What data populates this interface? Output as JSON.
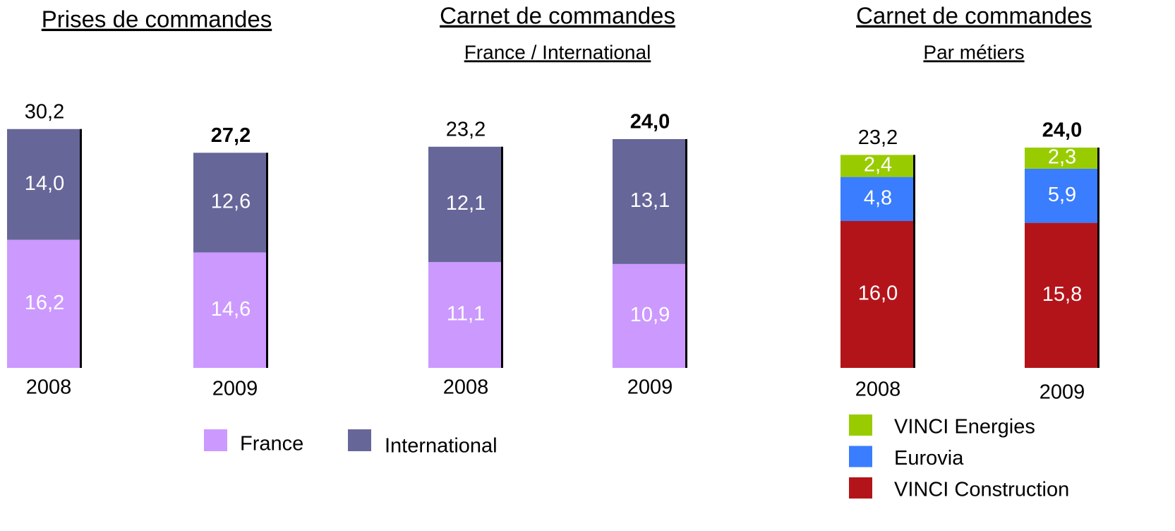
{
  "chart_data": [
    {
      "type": "bar",
      "stacked": true,
      "title": "Prises de commandes",
      "categories": [
        "2008",
        "2009"
      ],
      "series": [
        {
          "name": "France",
          "color": "#cc99ff",
          "values": [
            16.2,
            14.6
          ],
          "value_labels": [
            "16,2",
            "14,6"
          ]
        },
        {
          "name": "International",
          "color": "#666699",
          "values": [
            14.0,
            12.6
          ],
          "value_labels": [
            "14,0",
            "12,6"
          ]
        }
      ],
      "totals": [
        30.2,
        27.2
      ],
      "total_labels": [
        "30,2",
        "27,2"
      ]
    },
    {
      "type": "bar",
      "stacked": true,
      "title": "Carnet de commandes",
      "subtitle": "France / International",
      "categories": [
        "2008",
        "2009"
      ],
      "series": [
        {
          "color": "#cc99ff",
          "values": [
            11.1,
            10.9
          ],
          "value_labels": [
            "11,1",
            "10,9"
          ]
        },
        {
          "color": "#666699",
          "values": [
            12.1,
            13.1
          ],
          "value_labels": [
            "12,1",
            "13,1"
          ]
        }
      ],
      "totals": [
        23.2,
        24.0
      ],
      "total_labels": [
        "23,2",
        "24,0"
      ]
    },
    {
      "type": "bar",
      "stacked": true,
      "title": "Carnet de commandes",
      "subtitle": "Par métiers",
      "categories": [
        "2008",
        "2009"
      ],
      "series": [
        {
          "name": "VINCI Construction",
          "color": "#b3141a",
          "values": [
            16.0,
            15.8
          ],
          "value_labels": [
            "16,0",
            "15,8"
          ]
        },
        {
          "name": "Eurovia",
          "color": "#3a7dff",
          "values": [
            4.8,
            5.9
          ],
          "value_labels": [
            "4,8",
            "5,9"
          ]
        },
        {
          "name": "VINCI Energies",
          "color": "#99cc00",
          "values": [
            2.4,
            2.3
          ],
          "value_labels": [
            "2,4",
            "2,3"
          ]
        }
      ],
      "totals": [
        23.2,
        24.0
      ],
      "total_labels": [
        "23,2",
        "24,0"
      ]
    }
  ]
}
